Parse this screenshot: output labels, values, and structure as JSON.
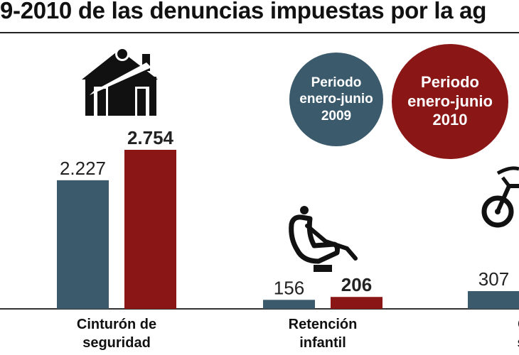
{
  "title": "9-2010 de las denuncias impuestas por la ag",
  "legend": {
    "series_2009": [
      "Periodo",
      "enero-junio",
      "2009"
    ],
    "series_2010": [
      "Periodo",
      "enero-junio",
      "2010"
    ]
  },
  "colors": {
    "series_2009": "#3b5b6d",
    "series_2010": "#8a1616",
    "axis": "#333333"
  },
  "icons": [
    "house-seatbelt-icon",
    "child-car-seat-icon",
    "motorcycle-icon"
  ],
  "chart_data": {
    "type": "bar",
    "title": "9-2010 de las denuncias impuestas por la ag",
    "categories": [
      [
        "Cinturón de",
        "seguridad"
      ],
      [
        "Retención",
        "infantil"
      ],
      [
        "Cir",
        "sin"
      ]
    ],
    "series": [
      {
        "name": "Periodo enero-junio 2009",
        "values": [
          2227,
          156,
          307
        ],
        "labels": [
          "2.227",
          "156",
          "307"
        ]
      },
      {
        "name": "Periodo enero-junio 2010",
        "values": [
          2754,
          206,
          null
        ],
        "labels": [
          "2.754",
          "206",
          ""
        ]
      }
    ],
    "ylim": [
      0,
      2754
    ],
    "xlabel": "",
    "ylabel": "",
    "grid": false,
    "legend_position": "top-right"
  }
}
